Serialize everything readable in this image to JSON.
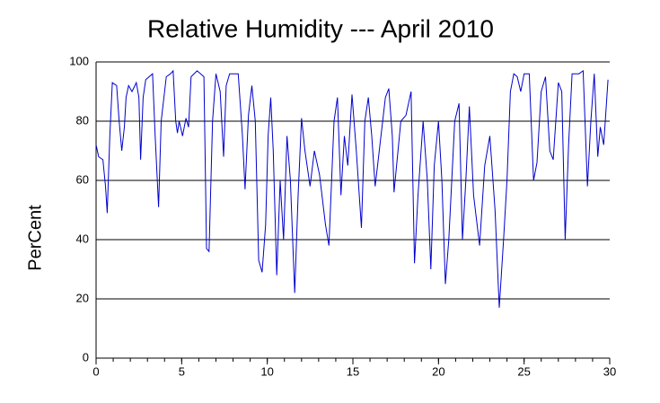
{
  "chart_data": {
    "type": "line",
    "title": "Relative Humidity --- April 2010",
    "y_label": "PerCent",
    "x": [
      0,
      0.15,
      0.4,
      0.55,
      0.65,
      0.8,
      0.95,
      1.2,
      1.35,
      1.5,
      1.65,
      1.75,
      1.9,
      2.1,
      2.35,
      2.5,
      2.6,
      2.75,
      2.9,
      3.3,
      3.45,
      3.65,
      3.8,
      4.1,
      4.35,
      4.5,
      4.65,
      4.75,
      4.85,
      5.05,
      5.25,
      5.4,
      5.55,
      5.9,
      6.3,
      6.45,
      6.6,
      6.8,
      7.0,
      7.25,
      7.45,
      7.6,
      7.8,
      8.3,
      8.55,
      8.7,
      8.9,
      9.1,
      9.3,
      9.5,
      9.7,
      9.9,
      10.05,
      10.2,
      10.35,
      10.55,
      10.75,
      10.95,
      11.15,
      11.35,
      11.6,
      11.8,
      12.0,
      12.2,
      12.5,
      12.75,
      13.05,
      13.4,
      13.6,
      13.9,
      14.1,
      14.3,
      14.5,
      14.7,
      14.95,
      15.2,
      15.5,
      15.7,
      15.9,
      16.1,
      16.3,
      16.5,
      16.9,
      17.1,
      17.3,
      17.4,
      17.8,
      18.1,
      18.4,
      18.6,
      18.8,
      19.1,
      19.35,
      19.55,
      19.75,
      20.0,
      20.2,
      20.4,
      20.6,
      20.95,
      21.2,
      21.4,
      21.6,
      21.8,
      22.05,
      22.4,
      22.7,
      23.0,
      23.3,
      23.55,
      23.8,
      24.0,
      24.2,
      24.4,
      24.6,
      24.8,
      25.0,
      25.3,
      25.55,
      25.75,
      26.0,
      26.25,
      26.5,
      26.7,
      27.0,
      27.2,
      27.4,
      27.6,
      27.8,
      28.2,
      28.45,
      28.7,
      28.9,
      29.1,
      29.3,
      29.45,
      29.65,
      29.9
    ],
    "series": [
      {
        "name": "Relative Humidity",
        "color": "#0000cc",
        "values": [
          72,
          68,
          67,
          58,
          49,
          75,
          93,
          92,
          80,
          70,
          78,
          88,
          92,
          90,
          93,
          88,
          67,
          88,
          94,
          96,
          75,
          51,
          80,
          95,
          96,
          97,
          80,
          76,
          80,
          75,
          81,
          78,
          95,
          97,
          95,
          37,
          36,
          80,
          96,
          90,
          68,
          92,
          96,
          96,
          75,
          57,
          82,
          92,
          80,
          33,
          29,
          45,
          75,
          88,
          70,
          28,
          60,
          40,
          75,
          60,
          22,
          55,
          81,
          70,
          58,
          70,
          62,
          45,
          38,
          80,
          88,
          55,
          75,
          65,
          89,
          70,
          44,
          80,
          88,
          75,
          58,
          68,
          88,
          91,
          75,
          56,
          80,
          82,
          90,
          32,
          55,
          80,
          60,
          30,
          65,
          80,
          60,
          25,
          40,
          80,
          86,
          40,
          60,
          85,
          55,
          38,
          65,
          75,
          50,
          17,
          40,
          60,
          90,
          96,
          95,
          90,
          96,
          96,
          60,
          66,
          90,
          95,
          70,
          67,
          93,
          90,
          40,
          72,
          96,
          96,
          97,
          58,
          80,
          96,
          68,
          78,
          72,
          94
        ]
      }
    ],
    "xlim": [
      0,
      30
    ],
    "xticks": [
      0,
      5,
      10,
      15,
      20,
      25,
      30
    ],
    "xminor_ticks": [
      0,
      1,
      2,
      3,
      4,
      5,
      6,
      7,
      8,
      9,
      10,
      11,
      12,
      13,
      14,
      15,
      16,
      17,
      18,
      19,
      20,
      21,
      22,
      23,
      24,
      25,
      26,
      27,
      28,
      29,
      30
    ],
    "ylim": [
      0,
      100
    ],
    "yticks": [
      0,
      20,
      40,
      60,
      80,
      100
    ],
    "grid": true
  }
}
